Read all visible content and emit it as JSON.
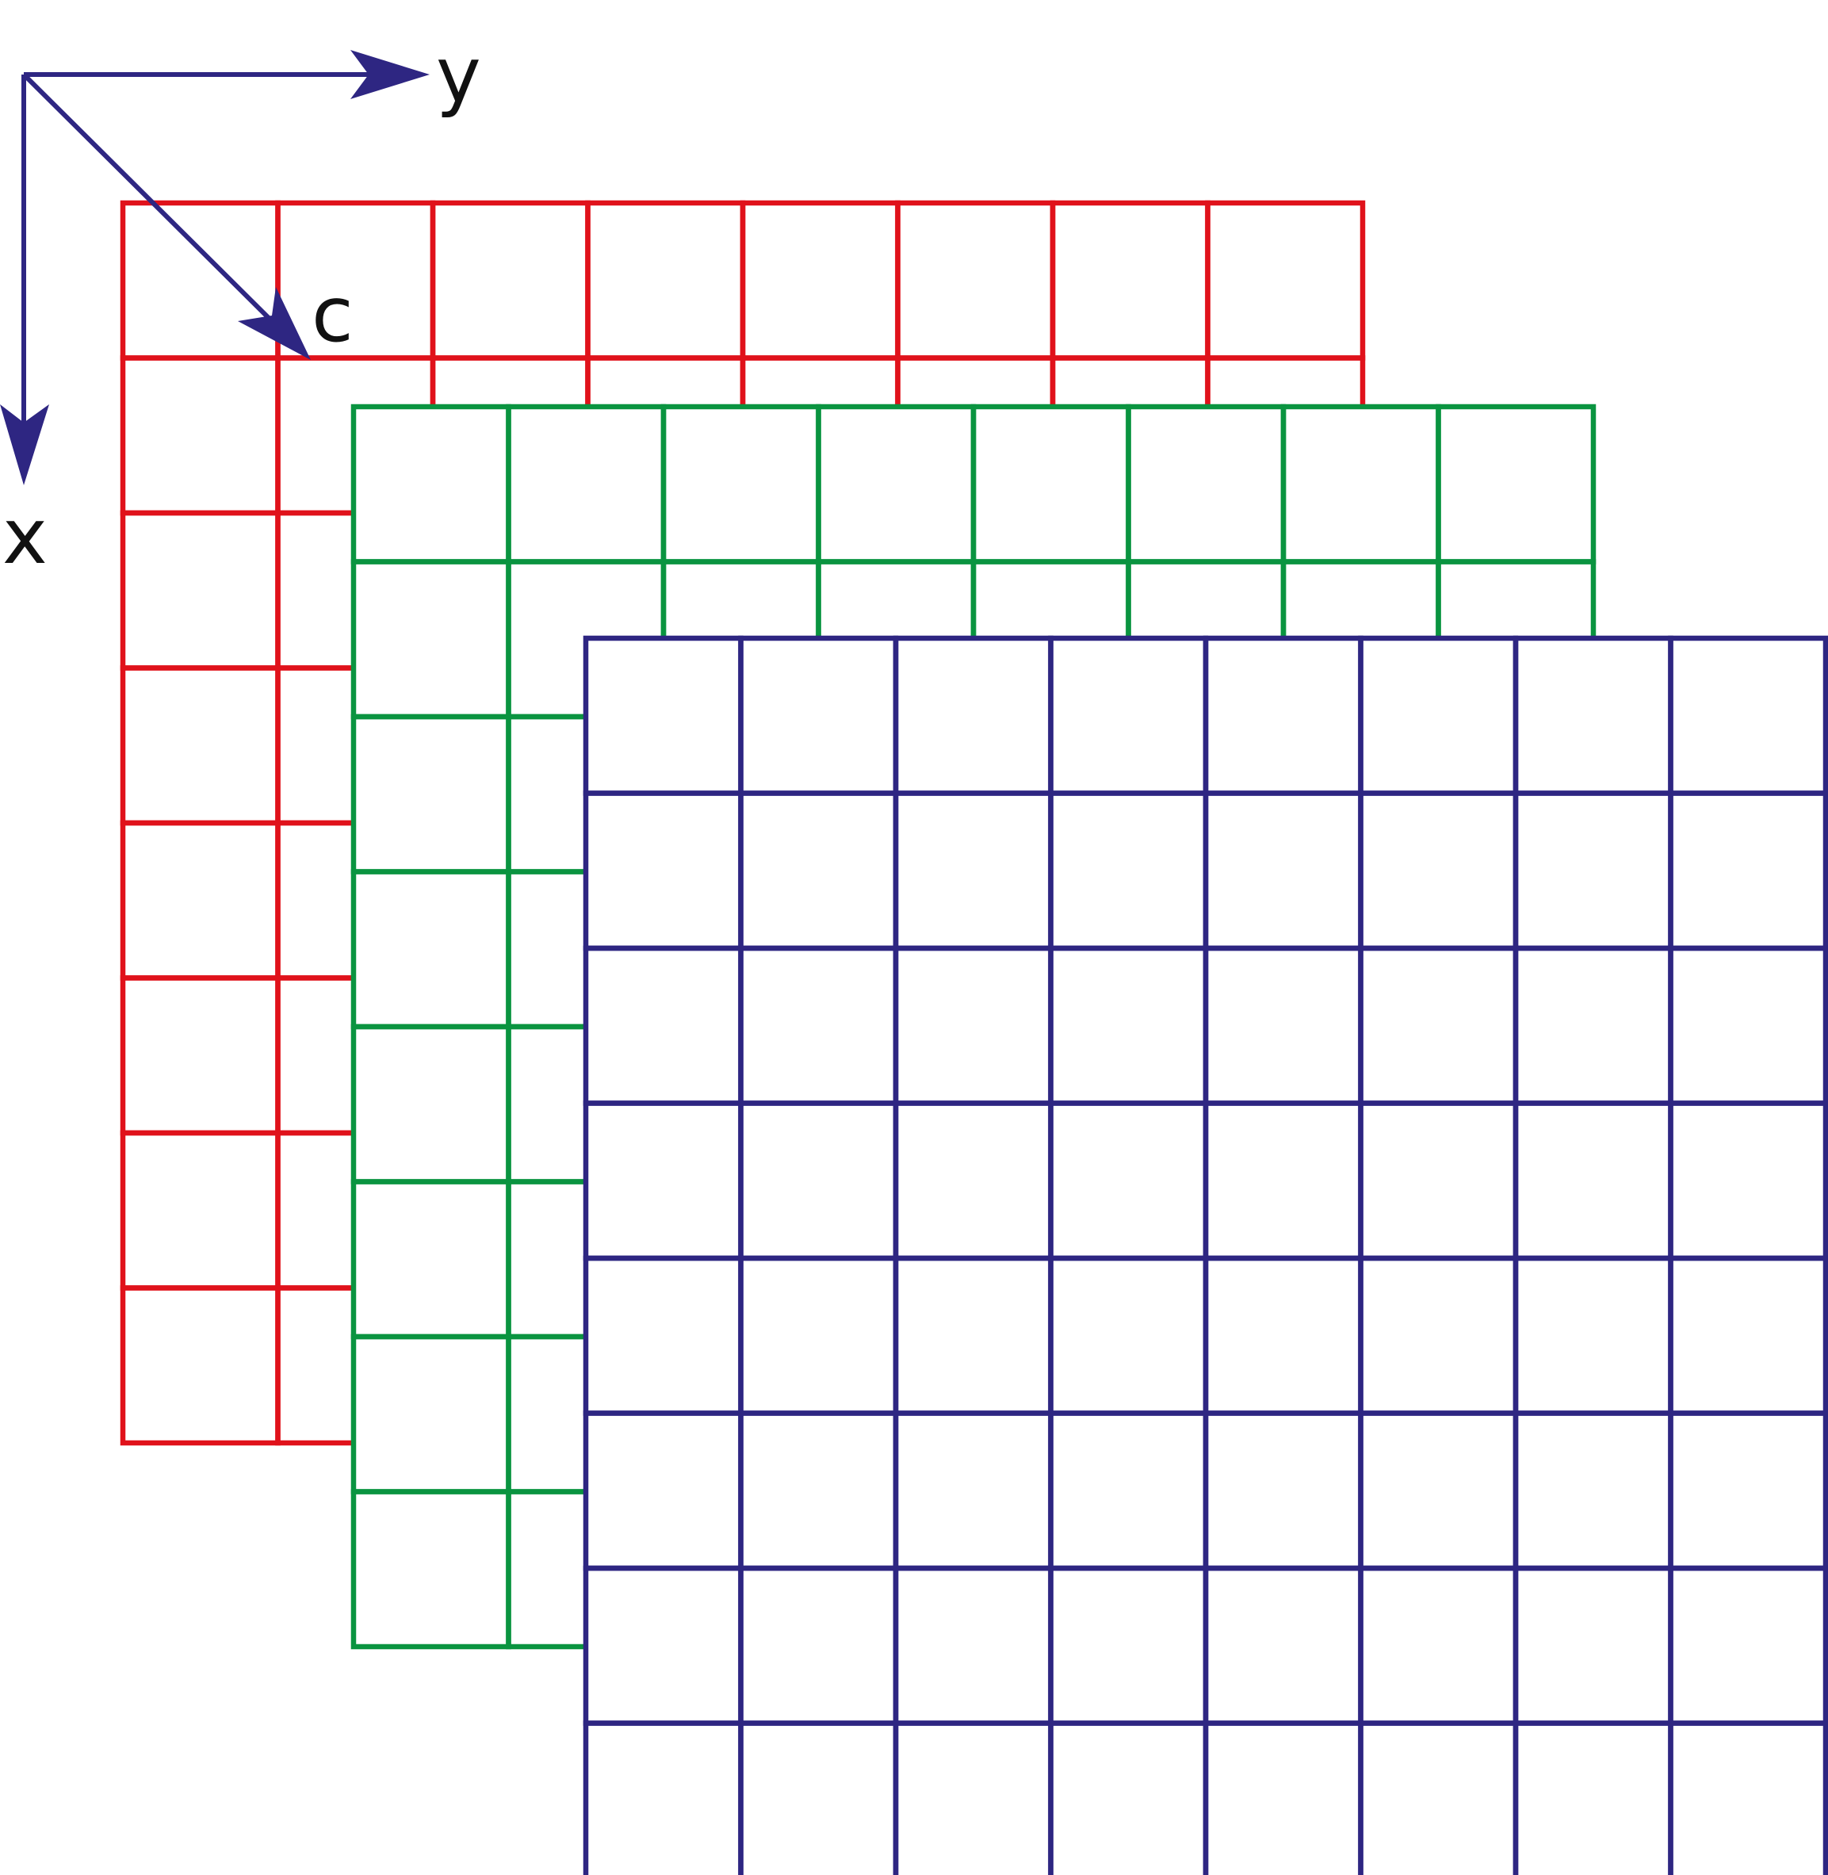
{
  "axes": {
    "color": "#2e2682",
    "y_label": "y",
    "x_label": "x",
    "c_label": "c"
  },
  "grid": {
    "rows": 8,
    "cols": 8
  },
  "layers": [
    {
      "name": "layer-red",
      "color": "#e0121b"
    },
    {
      "name": "layer-green",
      "color": "#0a9440"
    },
    {
      "name": "layer-blue",
      "color": "#2e2682"
    }
  ]
}
